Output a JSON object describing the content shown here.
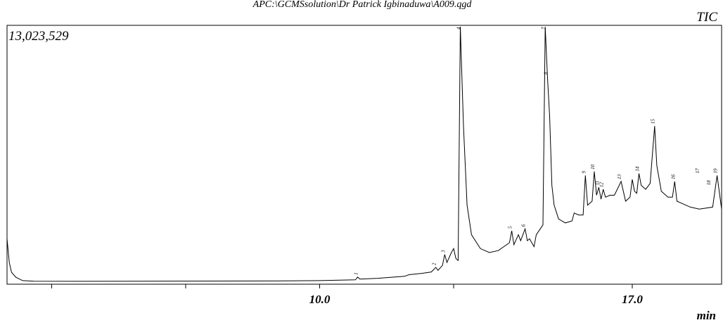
{
  "chart_data": {
    "type": "line",
    "title": "APC:\\GCMSsolution\\Dr Patrick Igbinaduwa\\A009.qgd",
    "signal_label": "TIC",
    "max_intensity_label": "13,023,529",
    "xlabel": "min",
    "x_tick_labels": [
      "10.0",
      "17.0"
    ],
    "x_ticks": [
      4.0,
      7.0,
      10.0,
      13.0,
      17.0
    ],
    "xlim": [
      3.0,
      19.0
    ],
    "ylim": [
      0,
      13023529
    ],
    "grid": false,
    "series": [
      {
        "values": [
          [
            3.0,
            2300000
          ],
          [
            3.05,
            1100000
          ],
          [
            3.1,
            600000
          ],
          [
            3.2,
            350000
          ],
          [
            3.35,
            180000
          ],
          [
            3.6,
            150000
          ],
          [
            4.5,
            145000
          ],
          [
            6.0,
            150000
          ],
          [
            7.0,
            155000
          ],
          [
            8.0,
            160000
          ],
          [
            9.0,
            165000
          ],
          [
            10.0,
            180000
          ],
          [
            10.8,
            220000
          ],
          [
            10.85,
            360000
          ],
          [
            10.9,
            260000
          ],
          [
            11.3,
            300000
          ],
          [
            11.9,
            400000
          ],
          [
            12.0,
            480000
          ],
          [
            12.3,
            550000
          ],
          [
            12.5,
            620000
          ],
          [
            12.6,
            850000
          ],
          [
            12.65,
            700000
          ],
          [
            12.75,
            950000
          ],
          [
            12.8,
            1500000
          ],
          [
            12.85,
            1100000
          ],
          [
            12.95,
            1600000
          ],
          [
            13.0,
            1800000
          ],
          [
            13.05,
            1300000
          ],
          [
            13.1,
            1200000
          ],
          [
            13.15,
            13023529
          ],
          [
            13.22,
            8000000
          ],
          [
            13.3,
            4000000
          ],
          [
            13.4,
            2500000
          ],
          [
            13.6,
            1800000
          ],
          [
            13.8,
            1600000
          ],
          [
            14.0,
            1700000
          ],
          [
            14.25,
            2100000
          ],
          [
            14.3,
            2700000
          ],
          [
            14.35,
            2000000
          ],
          [
            14.45,
            2500000
          ],
          [
            14.5,
            2200000
          ],
          [
            14.6,
            2800000
          ],
          [
            14.65,
            2200000
          ],
          [
            14.7,
            2300000
          ],
          [
            14.8,
            1900000
          ],
          [
            14.85,
            2500000
          ],
          [
            15.0,
            3000000
          ],
          [
            15.05,
            13023529
          ],
          [
            15.1,
            10500000
          ],
          [
            15.15,
            8500000
          ],
          [
            15.2,
            5000000
          ],
          [
            15.25,
            4000000
          ],
          [
            15.35,
            3300000
          ],
          [
            15.5,
            3100000
          ],
          [
            15.65,
            3200000
          ],
          [
            15.7,
            3600000
          ],
          [
            15.8,
            3500000
          ],
          [
            15.9,
            3500000
          ],
          [
            15.95,
            5500000
          ],
          [
            16.0,
            4000000
          ],
          [
            16.1,
            4200000
          ],
          [
            16.15,
            5700000
          ],
          [
            16.2,
            4500000
          ],
          [
            16.25,
            4900000
          ],
          [
            16.3,
            4300000
          ],
          [
            16.35,
            4800000
          ],
          [
            16.4,
            4400000
          ],
          [
            16.5,
            4500000
          ],
          [
            16.6,
            4500000
          ],
          [
            16.75,
            5200000
          ],
          [
            16.8,
            4700000
          ],
          [
            16.85,
            4200000
          ],
          [
            16.95,
            4400000
          ],
          [
            17.0,
            5300000
          ],
          [
            17.05,
            4700000
          ],
          [
            17.1,
            4600000
          ],
          [
            17.15,
            5600000
          ],
          [
            17.2,
            5000000
          ],
          [
            17.3,
            4800000
          ],
          [
            17.4,
            5100000
          ],
          [
            17.5,
            8000000
          ],
          [
            17.55,
            6000000
          ],
          [
            17.65,
            4700000
          ],
          [
            17.8,
            4400000
          ],
          [
            17.9,
            4400000
          ],
          [
            17.95,
            5200000
          ],
          [
            18.0,
            4200000
          ],
          [
            18.1,
            4100000
          ],
          [
            18.3,
            3900000
          ],
          [
            18.5,
            3800000
          ],
          [
            18.8,
            3900000
          ],
          [
            18.9,
            5500000
          ],
          [
            19.0,
            3800000
          ]
        ]
      }
    ],
    "peak_labels": [
      {
        "label": "1",
        "x": 10.85,
        "y": 360000
      },
      {
        "label": "2",
        "x": 12.6,
        "y": 850000
      },
      {
        "label": "3",
        "x": 12.8,
        "y": 1500000
      },
      {
        "label": "4",
        "x": 13.15,
        "y": 13023529
      },
      {
        "label": "5",
        "x": 14.3,
        "y": 2700000
      },
      {
        "label": "6",
        "x": 14.6,
        "y": 2800000
      },
      {
        "label": "7",
        "x": 15.05,
        "y": 13023529
      },
      {
        "label": "8",
        "x": 15.1,
        "y": 10500000
      },
      {
        "label": "9",
        "x": 15.95,
        "y": 5500000
      },
      {
        "label": "10",
        "x": 16.15,
        "y": 5700000
      },
      {
        "label": "11",
        "x": 16.25,
        "y": 4900000
      },
      {
        "label": "12",
        "x": 16.35,
        "y": 4800000
      },
      {
        "label": "13",
        "x": 16.75,
        "y": 5200000
      },
      {
        "label": "14",
        "x": 17.15,
        "y": 5600000
      },
      {
        "label": "15",
        "x": 17.5,
        "y": 8000000
      },
      {
        "label": "16",
        "x": 17.95,
        "y": 5200000
      },
      {
        "label": "17",
        "x": 18.5,
        "y": 5500000
      },
      {
        "label": "18",
        "x": 18.75,
        "y": 4900000
      },
      {
        "label": "19",
        "x": 18.9,
        "y": 5500000
      }
    ]
  }
}
